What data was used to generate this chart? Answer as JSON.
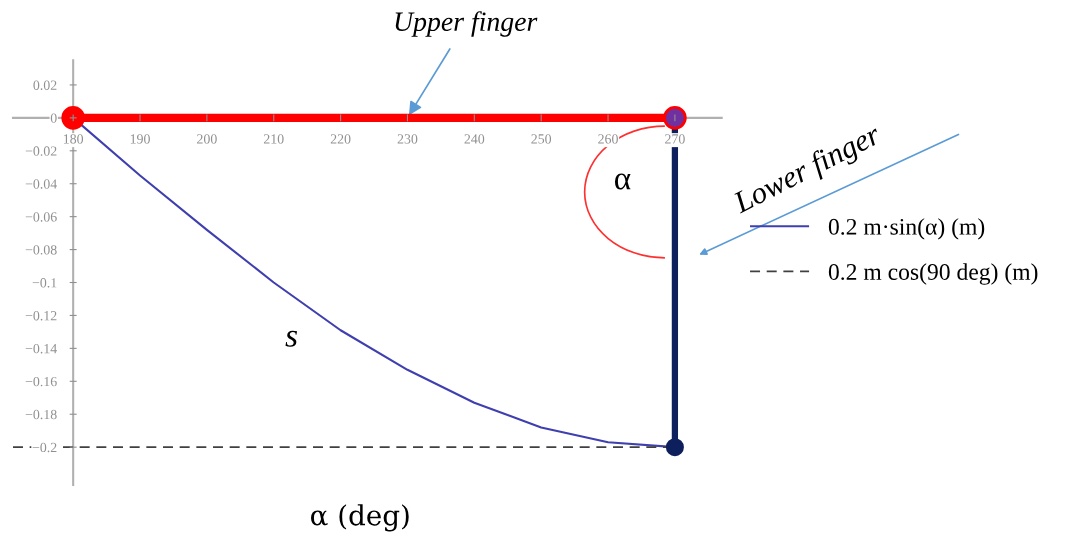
{
  "chart_data": {
    "type": "line",
    "xlabel": "α (deg)",
    "xlim": [
      171,
      277
    ],
    "ylim": [
      -0.223,
      0.035
    ],
    "xticks": [
      180,
      190,
      200,
      210,
      220,
      230,
      240,
      250,
      260,
      270
    ],
    "yticks": [
      0.02,
      0,
      {
        "value": -0.02,
        "label": "−0.02"
      },
      {
        "value": -0.04,
        "label": "−0.04"
      },
      {
        "value": -0.06,
        "label": "−0.06"
      },
      {
        "value": -0.08,
        "label": "−0.08"
      },
      {
        "value": -0.1,
        "label": "−0.1"
      },
      {
        "value": -0.12,
        "label": "−0.12"
      },
      {
        "value": -0.14,
        "label": "−0.14"
      },
      {
        "value": -0.16,
        "label": "−0.16"
      },
      {
        "value": -0.18,
        "label": "−0.18"
      },
      {
        "value": -0.2,
        "label": "−0.2"
      }
    ],
    "grid": false,
    "legend": "right",
    "series": [
      {
        "name": "0.2 m·sin(α) (m)",
        "color": "#3f3fb0",
        "x": [
          180,
          190,
          200,
          210,
          220,
          230,
          240,
          250,
          260,
          270
        ],
        "values": [
          0,
          -0.035,
          -0.068,
          -0.1,
          -0.129,
          -0.153,
          -0.173,
          -0.188,
          -0.197,
          -0.2
        ],
        "marker": "none",
        "line_style": "solid"
      },
      {
        "name": "0.2 m cos(90 deg) (m)",
        "color": "#404040",
        "x": [
          171,
          270
        ],
        "values": [
          -0.2,
          -0.2
        ],
        "marker": "none",
        "line_style": "dashed"
      },
      {
        "color": "#ff0000",
        "x": [
          180,
          270
        ],
        "values": [
          0,
          0
        ],
        "marker": "circle",
        "colors": [
          "#ff0000",
          "#7030a0"
        ],
        "line_style": "solid"
      },
      {
        "color": "#0d1f5c",
        "x": [
          270,
          270
        ],
        "values": [
          0,
          -0.2
        ],
        "marker": "circle",
        "colors": [
          null,
          "#0d1f5c"
        ],
        "line_style": "solid"
      }
    ],
    "annotations": [
      {
        "text": "Upper finger",
        "x": 230,
        "y": 0
      },
      "Lower finger",
      "α",
      "s"
    ]
  }
}
